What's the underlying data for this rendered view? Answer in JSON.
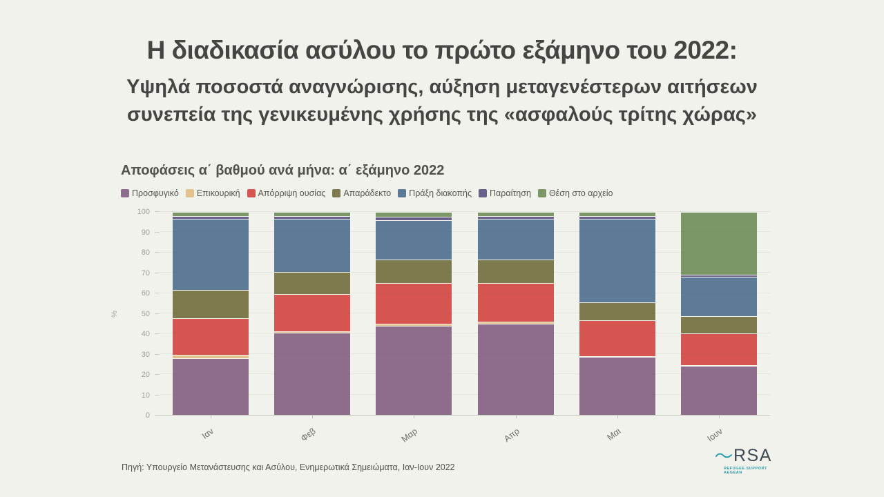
{
  "header": {
    "title": "Η διαδικασία ασύλου το πρώτο εξάμηνο του 2022:",
    "subtitle1": "Υψηλά ποσοστά αναγνώρισης, αύξηση μεταγενέστερων αιτήσεων",
    "subtitle2": "συνεπεία της γενικευμένης χρήσης της «ασφαλούς τρίτης χώρας»"
  },
  "chart_data": {
    "type": "bar",
    "stacked": true,
    "unit": "percent",
    "title": "Αποφάσεις α΄ βαθμού ανά μήνα: α΄ εξάμηνο 2022",
    "categories": [
      "Ιαν",
      "Φεβ",
      "Μαρ",
      "Απρ",
      "Μαι",
      "Ιουν"
    ],
    "series": [
      {
        "name": "Προσφυγικό",
        "color": "#8e6c8c",
        "values": [
          28,
          40.5,
          44,
          45,
          28.5,
          24
        ]
      },
      {
        "name": "Επικουρική",
        "color": "#e3c290",
        "values": [
          1.5,
          0.5,
          1,
          1,
          0.5,
          0.5
        ]
      },
      {
        "name": "Απόρριψη ουσίας",
        "color": "#d65551",
        "values": [
          18,
          18.5,
          20,
          19,
          17.5,
          15.5
        ]
      },
      {
        "name": "Απαράδεκτο",
        "color": "#7d7a4d",
        "values": [
          14,
          11,
          11.5,
          11.5,
          9,
          8.5
        ]
      },
      {
        "name": "Πράξη διακοπής",
        "color": "#5d7a96",
        "values": [
          35,
          26,
          19.5,
          20,
          41,
          19.5
        ]
      },
      {
        "name": "Παραίτηση",
        "color": "#69618b",
        "values": [
          1.5,
          1.5,
          1.5,
          1.5,
          1.5,
          1
        ]
      },
      {
        "name": "Θέση στο αρχείο",
        "color": "#7b9768",
        "values": [
          2,
          2,
          2.5,
          2,
          2,
          31
        ]
      }
    ],
    "xlabel": "",
    "ylabel": "%",
    "ylim": [
      0,
      100
    ],
    "ytick_step": 10,
    "grid": true,
    "legend_position": "top"
  },
  "footer": {
    "source": "Πηγή: Υπουργείο Μετανάστευσης και Ασύλου, Ενημερωτικά Σημειώματα, Ιαν-Ιουν 2022"
  },
  "logo": {
    "text": "RSA",
    "tagline": "REFUGEE SUPPORT AEGEAN",
    "accent": "#2b9dae"
  }
}
